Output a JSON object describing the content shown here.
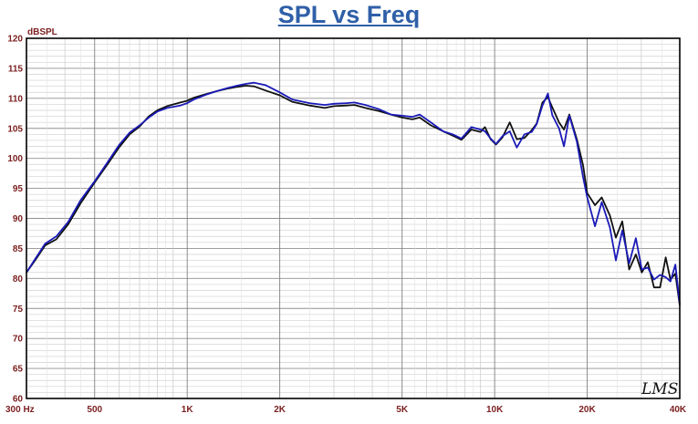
{
  "chart_data": {
    "type": "line",
    "title": "SPL vs Freq",
    "ylabel": "dBSPL",
    "xlabel": "",
    "x_scale": "log",
    "xlim": [
      300,
      40000
    ],
    "ylim": [
      60,
      120
    ],
    "y_ticks": [
      60,
      65,
      70,
      75,
      80,
      85,
      90,
      95,
      100,
      105,
      110,
      115,
      120
    ],
    "x_tick_labels": [
      {
        "value": 300,
        "label": "300 Hz"
      },
      {
        "value": 500,
        "label": "500"
      },
      {
        "value": 1000,
        "label": "1K"
      },
      {
        "value": 2000,
        "label": "2K"
      },
      {
        "value": 5000,
        "label": "5K"
      },
      {
        "value": 10000,
        "label": "10K"
      },
      {
        "value": 20000,
        "label": "20K"
      },
      {
        "value": 40000,
        "label": "40K"
      }
    ],
    "grid": true,
    "logo": "LMS",
    "series": [
      {
        "color": "#111111",
        "points": [
          [
            300,
            81
          ],
          [
            320,
            83
          ],
          [
            345,
            85.5
          ],
          [
            375,
            86.5
          ],
          [
            410,
            89
          ],
          [
            450,
            92.5
          ],
          [
            500,
            96
          ],
          [
            550,
            99
          ],
          [
            600,
            101.8
          ],
          [
            650,
            104
          ],
          [
            700,
            105.3
          ],
          [
            750,
            107
          ],
          [
            800,
            108
          ],
          [
            860,
            108.7
          ],
          [
            950,
            109.3
          ],
          [
            1000,
            109.6
          ],
          [
            1050,
            110.1
          ],
          [
            1150,
            110.7
          ],
          [
            1250,
            111.2
          ],
          [
            1350,
            111.6
          ],
          [
            1450,
            111.9
          ],
          [
            1550,
            112.1
          ],
          [
            1650,
            112
          ],
          [
            1800,
            111.3
          ],
          [
            2000,
            110.5
          ],
          [
            2200,
            109.4
          ],
          [
            2500,
            108.8
          ],
          [
            2800,
            108.4
          ],
          [
            3000,
            108.7
          ],
          [
            3300,
            108.8
          ],
          [
            3500,
            108.9
          ],
          [
            3800,
            108.4
          ],
          [
            4200,
            107.9
          ],
          [
            4600,
            107.3
          ],
          [
            5000,
            106.8
          ],
          [
            5400,
            106.5
          ],
          [
            5700,
            106.8
          ],
          [
            6200,
            105.5
          ],
          [
            6800,
            104.5
          ],
          [
            7300,
            103.8
          ],
          [
            7800,
            103.1
          ],
          [
            8400,
            104.8
          ],
          [
            9000,
            104.4
          ],
          [
            9300,
            105.2
          ],
          [
            9700,
            103.2
          ],
          [
            10100,
            102.3
          ],
          [
            10600,
            103.5
          ],
          [
            11200,
            106
          ],
          [
            11800,
            103.2
          ],
          [
            12500,
            103.4
          ],
          [
            13200,
            104.7
          ],
          [
            13700,
            105.8
          ],
          [
            14300,
            109.3
          ],
          [
            14900,
            110.2
          ],
          [
            15400,
            108.5
          ],
          [
            16200,
            106
          ],
          [
            16800,
            104.8
          ],
          [
            17500,
            107.3
          ],
          [
            18500,
            103.2
          ],
          [
            19400,
            98.8
          ],
          [
            20000,
            94.2
          ],
          [
            21200,
            92.2
          ],
          [
            22300,
            93.5
          ],
          [
            23700,
            90.5
          ],
          [
            24800,
            86.8
          ],
          [
            26000,
            89.5
          ],
          [
            27400,
            81.5
          ],
          [
            28800,
            84
          ],
          [
            30100,
            81
          ],
          [
            31500,
            82.7
          ],
          [
            33000,
            78.5
          ],
          [
            34500,
            78.5
          ],
          [
            36000,
            83.5
          ],
          [
            37300,
            79.8
          ],
          [
            38700,
            80.8
          ],
          [
            40000,
            75.5
          ]
        ]
      },
      {
        "color": "#1a1ab8",
        "points": [
          [
            300,
            81
          ],
          [
            320,
            83.2
          ],
          [
            345,
            85.8
          ],
          [
            375,
            87
          ],
          [
            410,
            89.4
          ],
          [
            450,
            93
          ],
          [
            500,
            96.2
          ],
          [
            550,
            99.3
          ],
          [
            600,
            102.2
          ],
          [
            650,
            104.3
          ],
          [
            700,
            105.5
          ],
          [
            750,
            106.8
          ],
          [
            800,
            107.8
          ],
          [
            860,
            108.4
          ],
          [
            950,
            108.8
          ],
          [
            1000,
            109.2
          ],
          [
            1050,
            109.8
          ],
          [
            1150,
            110.6
          ],
          [
            1250,
            111.2
          ],
          [
            1350,
            111.7
          ],
          [
            1450,
            112.1
          ],
          [
            1550,
            112.4
          ],
          [
            1650,
            112.6
          ],
          [
            1800,
            112.2
          ],
          [
            2000,
            111
          ],
          [
            2200,
            109.8
          ],
          [
            2500,
            109.2
          ],
          [
            2800,
            108.9
          ],
          [
            3000,
            109.1
          ],
          [
            3300,
            109.2
          ],
          [
            3500,
            109.3
          ],
          [
            3800,
            108.9
          ],
          [
            4200,
            108.2
          ],
          [
            4600,
            107.3
          ],
          [
            5000,
            107.1
          ],
          [
            5400,
            106.9
          ],
          [
            5700,
            107.3
          ],
          [
            6200,
            106
          ],
          [
            6800,
            104.5
          ],
          [
            7300,
            104
          ],
          [
            7800,
            103.3
          ],
          [
            8400,
            105.2
          ],
          [
            9000,
            104.8
          ],
          [
            9300,
            104.5
          ],
          [
            9700,
            103.3
          ],
          [
            10100,
            102.4
          ],
          [
            10600,
            103.7
          ],
          [
            11200,
            104.5
          ],
          [
            11800,
            101.8
          ],
          [
            12500,
            104
          ],
          [
            13200,
            104.4
          ],
          [
            13700,
            105.7
          ],
          [
            14300,
            108.8
          ],
          [
            14900,
            110.8
          ],
          [
            15400,
            107.2
          ],
          [
            16200,
            105
          ],
          [
            16800,
            102
          ],
          [
            17500,
            107.1
          ],
          [
            18500,
            102.8
          ],
          [
            19400,
            96.8
          ],
          [
            20000,
            93.5
          ],
          [
            21200,
            88.7
          ],
          [
            22300,
            92.7
          ],
          [
            23700,
            88.5
          ],
          [
            24800,
            83
          ],
          [
            26000,
            88
          ],
          [
            27400,
            82.5
          ],
          [
            28800,
            86.7
          ],
          [
            30100,
            81.5
          ],
          [
            31500,
            81.8
          ],
          [
            33000,
            79.8
          ],
          [
            34500,
            80.6
          ],
          [
            36000,
            80.2
          ],
          [
            37300,
            79.5
          ],
          [
            38700,
            82.3
          ],
          [
            40000,
            75.8
          ]
        ]
      }
    ]
  }
}
